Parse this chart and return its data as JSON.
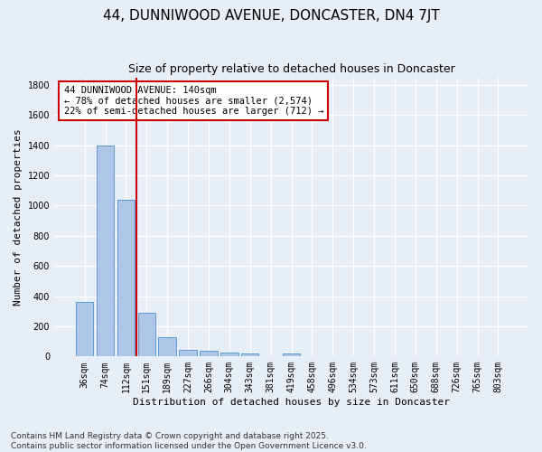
{
  "title": "44, DUNNIWOOD AVENUE, DONCASTER, DN4 7JT",
  "subtitle": "Size of property relative to detached houses in Doncaster",
  "xlabel": "Distribution of detached houses by size in Doncaster",
  "ylabel": "Number of detached properties",
  "categories": [
    "36sqm",
    "74sqm",
    "112sqm",
    "151sqm",
    "189sqm",
    "227sqm",
    "266sqm",
    "304sqm",
    "343sqm",
    "381sqm",
    "419sqm",
    "458sqm",
    "496sqm",
    "534sqm",
    "573sqm",
    "611sqm",
    "650sqm",
    "688sqm",
    "726sqm",
    "765sqm",
    "803sqm"
  ],
  "values": [
    360,
    1400,
    1040,
    290,
    130,
    42,
    35,
    25,
    18,
    0,
    18,
    0,
    0,
    0,
    0,
    0,
    0,
    0,
    0,
    0,
    0
  ],
  "bar_color": "#aec6e8",
  "bar_edge_color": "#5b9bd5",
  "vline_color": "#cc0000",
  "annotation_text": "44 DUNNIWOOD AVENUE: 140sqm\n← 78% of detached houses are smaller (2,574)\n22% of semi-detached houses are larger (712) →",
  "annotation_box_color": "#ffffff",
  "annotation_box_edge": "#cc0000",
  "ylim": [
    0,
    1850
  ],
  "yticks": [
    0,
    200,
    400,
    600,
    800,
    1000,
    1200,
    1400,
    1600,
    1800
  ],
  "background_color": "#e8eef7",
  "grid_color": "#ffffff",
  "footer": "Contains HM Land Registry data © Crown copyright and database right 2025.\nContains public sector information licensed under the Open Government Licence v3.0.",
  "title_fontsize": 11,
  "subtitle_fontsize": 9,
  "axis_label_fontsize": 8,
  "tick_fontsize": 7,
  "annotation_fontsize": 7.5,
  "footer_fontsize": 6.5
}
